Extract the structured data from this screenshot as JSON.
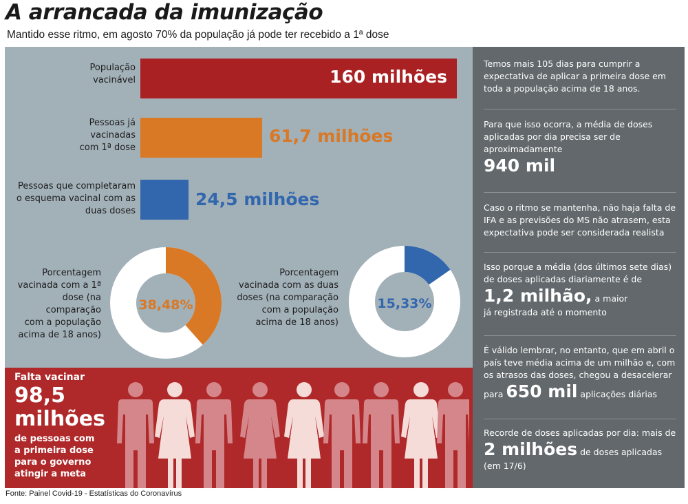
{
  "header": {
    "title": "A arrancada da imunização",
    "subtitle": "Mantido esse ritmo, em agosto 70% da população já pode ter recebido a 1ª dose"
  },
  "colors": {
    "red": "#a92123",
    "orange": "#d97825",
    "blue": "#3266ad",
    "panel_gray": "#a2b0b8",
    "dark_gray": "#62686c",
    "donut_bg": "#ffffff"
  },
  "chart_data": [
    {
      "type": "bar",
      "orientation": "horizontal",
      "categories": [
        "População vacinável",
        "Pessoas já vacinadas com 1ª dose",
        "Pessoas que completaram o esquema vacinal com as duas doses"
      ],
      "values": [
        160,
        61.7,
        24.5
      ],
      "unit": "milhões",
      "value_labels": [
        "160 milhões",
        "61,7 milhões",
        "24,5 milhões"
      ],
      "label_lines": [
        [
          "População",
          "vacinável"
        ],
        [
          "Pessoas já",
          "vacinadas",
          "com 1ª dose"
        ],
        [
          "Pessoas que completaram",
          "o esquema vacinal com as",
          "duas doses"
        ]
      ],
      "colors": [
        "#a92123",
        "#d97825",
        "#3266ad"
      ],
      "xlim": [
        0,
        160
      ]
    },
    {
      "type": "pie",
      "variant": "donut",
      "label": "Porcentagem vacinada com a 1ª dose (na comparação com a população acima de 18 anos)",
      "label_lines": [
        "Porcentagem",
        "vacinada com a 1ª",
        "dose (na comparação",
        "com a população",
        "acima de 18 anos)"
      ],
      "value": 38.48,
      "value_label": "38,48%",
      "color": "#d97825"
    },
    {
      "type": "pie",
      "variant": "donut",
      "label": "Porcentagem vacinada com as duas doses (na comparação com a população acima de 18 anos)",
      "label_lines": [
        "Porcentagem",
        "vacinada com as duas",
        "doses (na comparação",
        "com a população",
        "acima de 18 anos)"
      ],
      "value": 15.33,
      "value_label": "15,33%",
      "color": "#3266ad"
    }
  ],
  "falta": {
    "intro": "Falta vacinar",
    "big1": "98,5",
    "big2": "milhões",
    "desc_lines": [
      "de pessoas com",
      "a primeira dose",
      "para o governo",
      "atingir a meta"
    ],
    "people_icon": "person-silhouette-icon"
  },
  "right_panel": {
    "block1": "Temos mais 105 dias para cumprir a expectativa de aplicar a primeira dose em toda a população acima de 18 anos.",
    "block2_text": "Para que isso ocorra, a média de doses aplicadas por dia precisa ser de aproximadamente",
    "block2_big": "940 mil",
    "block3": "Caso o ritmo se mantenha, não haja falta de IFA e as previsões do MS não atrasem, esta expectativa pode ser considerada realista",
    "block4_text": "Isso porque a média (dos últimos sete dias) de doses aplicadas diariamente é de",
    "block4_big": "1,2 milhão,",
    "block4_after": " a maior",
    "block4_end": "já registrada até o momento",
    "block5_text": "É válido lembrar, no entanto, que em abril o país teve média acima de um milhão e, com os atrasos das doses, chegou a desacelerar",
    "block5_pre": "para ",
    "block5_big": "650 mil",
    "block5_post": " aplicações diárias",
    "block6_text": "Recorde de doses aplicadas por dia: mais de",
    "block6_big": "2 milhões",
    "block6_post": " de doses aplicadas",
    "block6_end": "(em 17/6)"
  },
  "source": "Fonte: Painel Covid-19 - Estatísticas do Coronavírus"
}
